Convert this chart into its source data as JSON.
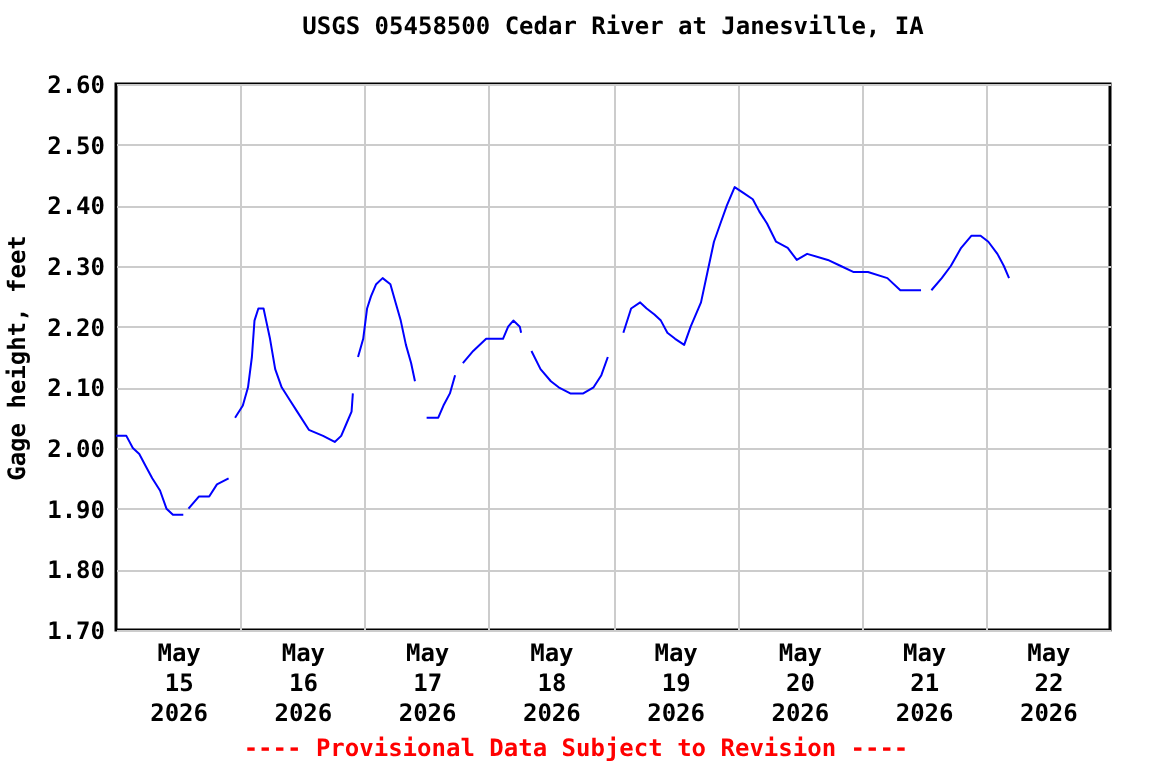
{
  "chart_data": {
    "type": "line",
    "title": "USGS 05458500 Cedar River at Janesville, IA",
    "ylabel": "Gage height, feet",
    "annotations": [
      "---- Provisional Data Subject to Revision ----"
    ],
    "xlim": [
      "2026-05-15T00:00",
      "2026-05-23T00:00"
    ],
    "xticks": [
      {
        "value": "2026-05-15T12:00",
        "label": "May\n15\n2026"
      },
      {
        "value": "2026-05-16T00:00",
        "label": null
      },
      {
        "value": "2026-05-16T12:00",
        "label": "May\n16\n2026"
      },
      {
        "value": "2026-05-17T00:00",
        "label": null
      },
      {
        "value": "2026-05-17T12:00",
        "label": "May\n17\n2026"
      },
      {
        "value": "2026-05-18T00:00",
        "label": null
      },
      {
        "value": "2026-05-18T12:00",
        "label": "May\n18\n2026"
      },
      {
        "value": "2026-05-19T00:00",
        "label": null
      },
      {
        "value": "2026-05-19T12:00",
        "label": "May\n19\n2026"
      },
      {
        "value": "2026-05-20T00:00",
        "label": null
      },
      {
        "value": "2026-05-20T12:00",
        "label": "May\n20\n2026"
      },
      {
        "value": "2026-05-21T00:00",
        "label": null
      },
      {
        "value": "2026-05-21T12:00",
        "label": "May\n21\n2026"
      },
      {
        "value": "2026-05-22T00:00",
        "label": null
      },
      {
        "value": "2026-05-22T12:00",
        "label": "May\n22\n2026"
      }
    ],
    "ylim": [
      1.7,
      2.6
    ],
    "yticks": [
      {
        "value": 1.7,
        "label": "1.70"
      },
      {
        "value": 1.8,
        "label": "1.80"
      },
      {
        "value": 1.9,
        "label": "1.90"
      },
      {
        "value": 2.0,
        "label": "2.00"
      },
      {
        "value": 2.1,
        "label": "2.10"
      },
      {
        "value": 2.2,
        "label": "2.20"
      },
      {
        "value": 2.3,
        "label": "2.30"
      },
      {
        "value": 2.4,
        "label": "2.40"
      },
      {
        "value": 2.5,
        "label": "2.50"
      },
      {
        "value": 2.6,
        "label": "2.60"
      }
    ],
    "grid": true,
    "x": [
      "2026-05-15T00:00",
      "2026-05-15T02:00",
      "2026-05-15T03:15",
      "2026-05-15T04:30",
      "2026-05-15T05:45",
      "2026-05-15T07:00",
      "2026-05-15T08:30",
      "2026-05-15T09:45",
      "2026-05-15T11:00",
      "2026-05-15T13:00",
      "2026-05-15T13:30",
      "2026-05-15T14:00",
      "2026-05-15T16:00",
      "2026-05-15T18:00",
      "2026-05-15T19:30",
      "2026-05-15T21:45",
      "2026-05-15T22:30",
      "2026-05-15T23:00",
      "2026-05-16T00:30",
      "2026-05-16T01:30",
      "2026-05-16T02:15",
      "2026-05-16T02:45",
      "2026-05-16T03:30",
      "2026-05-16T04:30",
      "2026-05-16T05:00",
      "2026-05-16T05:45",
      "2026-05-16T06:45",
      "2026-05-16T08:00",
      "2026-05-16T09:30",
      "2026-05-16T11:00",
      "2026-05-16T13:15",
      "2026-05-16T16:00",
      "2026-05-16T18:15",
      "2026-05-16T19:30",
      "2026-05-16T20:30",
      "2026-05-16T21:30",
      "2026-05-16T21:45",
      "2026-05-16T22:15",
      "2026-05-16T22:45",
      "2026-05-16T23:45",
      "2026-05-17T00:30",
      "2026-05-17T01:15",
      "2026-05-17T02:15",
      "2026-05-17T03:30",
      "2026-05-17T05:00",
      "2026-05-17T06:00",
      "2026-05-17T07:00",
      "2026-05-17T08:00",
      "2026-05-17T09:00",
      "2026-05-17T09:45",
      "2026-05-17T10:45",
      "2026-05-17T12:00",
      "2026-05-17T14:15",
      "2026-05-17T15:15",
      "2026-05-17T16:30",
      "2026-05-17T17:30",
      "2026-05-17T18:15",
      "2026-05-17T19:00",
      "2026-05-17T21:00",
      "2026-05-17T23:30",
      "2026-05-18T02:45",
      "2026-05-18T03:45",
      "2026-05-18T04:45",
      "2026-05-18T06:00",
      "2026-05-18T06:15",
      "2026-05-18T07:15",
      "2026-05-18T08:15",
      "2026-05-18T10:00",
      "2026-05-18T12:00",
      "2026-05-18T13:30",
      "2026-05-18T15:45",
      "2026-05-18T18:15",
      "2026-05-18T20:15",
      "2026-05-18T21:45",
      "2026-05-18T23:00",
      "2026-05-19T00:30",
      "2026-05-19T02:00",
      "2026-05-19T03:30",
      "2026-05-19T05:15",
      "2026-05-19T06:30",
      "2026-05-19T08:00",
      "2026-05-19T09:15",
      "2026-05-19T10:30",
      "2026-05-19T12:00",
      "2026-05-19T13:45",
      "2026-05-19T15:00",
      "2026-05-19T17:00",
      "2026-05-19T18:15",
      "2026-05-19T19:30",
      "2026-05-19T20:45",
      "2026-05-19T22:00",
      "2026-05-19T23:30",
      "2026-05-20T01:15",
      "2026-05-20T03:00",
      "2026-05-20T04:15",
      "2026-05-20T05:45",
      "2026-05-20T07:30",
      "2026-05-20T09:45",
      "2026-05-20T11:30",
      "2026-05-20T13:30",
      "2026-05-20T17:30",
      "2026-05-20T20:00",
      "2026-05-20T22:30",
      "2026-05-21T01:15",
      "2026-05-21T05:00",
      "2026-05-21T07:30",
      "2026-05-21T11:30",
      "2026-05-21T12:30",
      "2026-05-21T13:30",
      "2026-05-21T15:30",
      "2026-05-21T17:15",
      "2026-05-21T19:15",
      "2026-05-21T21:15",
      "2026-05-21T23:00",
      "2026-05-22T00:30",
      "2026-05-22T02:15",
      "2026-05-22T03:30",
      "2026-05-22T04:30"
    ],
    "series": [
      {
        "color": "#0000ff",
        "values": [
          2.02,
          2.02,
          2.0,
          1.99,
          1.97,
          1.95,
          1.93,
          1.9,
          1.89,
          1.89,
          null,
          1.9,
          1.92,
          1.92,
          1.94,
          1.95,
          null,
          2.05,
          2.07,
          2.1,
          2.15,
          2.21,
          2.23,
          2.23,
          2.21,
          2.18,
          2.13,
          2.1,
          2.08,
          2.06,
          2.03,
          2.02,
          2.01,
          2.02,
          2.04,
          2.06,
          2.09,
          null,
          2.15,
          2.18,
          2.23,
          2.25,
          2.27,
          2.28,
          2.27,
          2.24,
          2.21,
          2.17,
          2.14,
          2.11,
          null,
          2.05,
          2.05,
          2.07,
          2.09,
          2.12,
          null,
          2.14,
          2.16,
          2.18,
          2.18,
          2.2,
          2.21,
          2.2,
          2.19,
          null,
          2.16,
          2.13,
          2.11,
          2.1,
          2.09,
          2.09,
          2.1,
          2.12,
          2.15,
          null,
          2.19,
          2.23,
          2.24,
          2.23,
          2.22,
          2.21,
          2.19,
          2.18,
          2.17,
          2.2,
          2.24,
          2.29,
          2.34,
          2.37,
          2.4,
          2.43,
          2.42,
          2.41,
          2.39,
          2.37,
          2.34,
          2.33,
          2.31,
          2.32,
          2.31,
          2.3,
          2.29,
          2.29,
          2.28,
          2.26,
          2.26,
          null,
          2.26,
          2.28,
          2.3,
          2.33,
          2.35,
          2.35,
          2.34,
          2.32,
          2.3,
          2.28
        ]
      }
    ]
  }
}
